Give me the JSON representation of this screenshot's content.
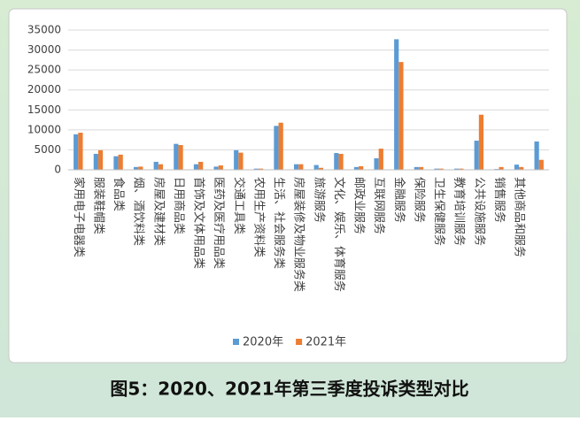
{
  "chart_data": {
    "type": "bar",
    "title": "图5：2020、2021年第三季度投诉类型对比",
    "categories": [
      "家用电子电器类",
      "服装鞋帽类",
      "食品类",
      "烟、酒饮料类",
      "房屋及建材类",
      "日用商品类",
      "首饰及文体用品类",
      "医药及医疗用品类",
      "交通工具类",
      "农用生产资料类",
      "生活、社会服务类",
      "房屋装修及物业服务类",
      "旅游服务",
      "文化、娱乐、体育服务",
      "邮政业服务",
      "互联网服务",
      "金融服务",
      "保险服务",
      "卫生保健服务",
      "教育培训服务",
      "公共设施服务",
      "销售服务",
      "其他商品和服务",
      null
    ],
    "series": [
      {
        "name": "2020年",
        "color": "#5b9bd5",
        "values": [
          8900,
          4000,
          3400,
          700,
          2000,
          6500,
          1400,
          800,
          4900,
          300,
          11000,
          1400,
          1200,
          4200,
          700,
          2900,
          32700,
          700,
          300,
          300,
          7300,
          200,
          1300,
          7100
        ]
      },
      {
        "name": "2021年",
        "color": "#ed7d31",
        "values": [
          9300,
          4900,
          3800,
          800,
          1400,
          6200,
          2000,
          1100,
          4300,
          300,
          11800,
          1400,
          500,
          4000,
          900,
          5300,
          27000,
          700,
          300,
          300,
          13800,
          700,
          700,
          2500
        ]
      }
    ],
    "ylim": [
      0,
      35000
    ],
    "yticks": [
      0,
      5000,
      10000,
      15000,
      20000,
      25000,
      30000,
      35000
    ],
    "grid": true,
    "legend": "bottom"
  }
}
